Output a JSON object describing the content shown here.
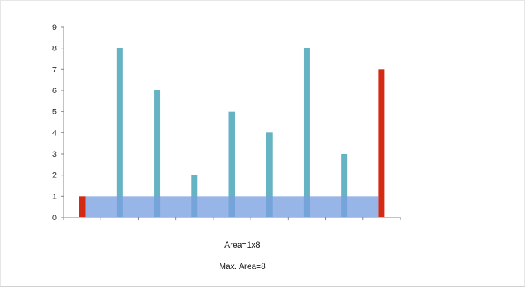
{
  "chart_data": {
    "type": "bar",
    "categories": [
      "",
      "",
      "",
      "",
      "",
      "",
      "",
      "",
      ""
    ],
    "values": [
      1,
      8,
      6,
      2,
      5,
      4,
      8,
      3,
      7
    ],
    "highlighted_indices": [
      0,
      8
    ],
    "ylim": [
      0,
      9
    ],
    "yticks": [
      "0",
      "1",
      "2",
      "3",
      "4",
      "5",
      "6",
      "7",
      "8",
      "9"
    ],
    "grid": false,
    "overlay_area": {
      "from_index": 0,
      "to_index": 8,
      "height": 1
    },
    "annotations": [
      "Area=1x8",
      "Max. Area=8"
    ],
    "colors": {
      "bar": "#66b3c4",
      "highlight": "#d42a14",
      "area": "#7aa0e0",
      "axis": "#868686"
    }
  }
}
